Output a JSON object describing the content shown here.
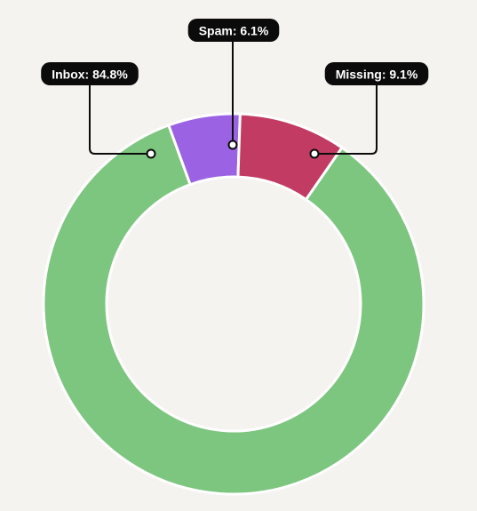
{
  "chart_data": {
    "type": "pie",
    "variant": "donut",
    "categories": [
      "Inbox",
      "Spam",
      "Missing"
    ],
    "values": [
      84.8,
      6.1,
      9.1
    ],
    "unit": "%",
    "labels": [
      "Inbox: 84.8%",
      "Spam: 6.1%",
      "Missing: 9.1%"
    ],
    "colors": [
      "#7dc67f",
      "#9b63e3",
      "#c23b63"
    ],
    "title": "",
    "legend": "none",
    "label_style": "callout pills, black background, white text"
  },
  "colors": {
    "background": "#f4f3ef",
    "label_background": "#0b0b0b",
    "label_text": "#ffffff",
    "slice_separator": "#ffffff"
  }
}
